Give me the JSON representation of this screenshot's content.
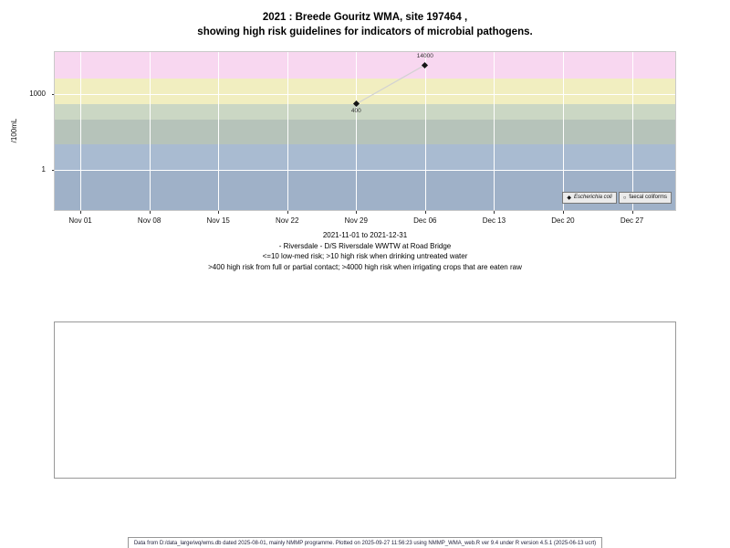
{
  "title": {
    "line1": "2021 : Breede Gouritz WMA, site 197464 ,",
    "line2": "showing high risk guidelines for indicators of microbial pathogens."
  },
  "chart_data": {
    "type": "scatter",
    "title": "2021 : Breede Gouritz WMA, site 197464 , showing high risk guidelines for indicators of microbial pathogens.",
    "ylabel": "/100mL",
    "yscale": "log",
    "ylim": [
      0.026,
      45000
    ],
    "x_domain_days": [
      -2.6,
      60.4
    ],
    "grid": true,
    "x_ticks": [
      {
        "label": "Nov 01",
        "day": 0
      },
      {
        "label": "Nov 08",
        "day": 7
      },
      {
        "label": "Nov 15",
        "day": 14
      },
      {
        "label": "Nov 22",
        "day": 21
      },
      {
        "label": "Nov 29",
        "day": 28
      },
      {
        "label": "Dec 06",
        "day": 35
      },
      {
        "label": "Dec 13",
        "day": 42
      },
      {
        "label": "Dec 20",
        "day": 49
      },
      {
        "label": "Dec 27",
        "day": 56
      }
    ],
    "y_ticks": [
      {
        "label": "1000",
        "value": 1000
      },
      {
        "label": "1",
        "value": 1
      }
    ],
    "risk_bands": [
      {
        "from": 4000,
        "to": 45000,
        "color": "#f8d7f0"
      },
      {
        "from": 400,
        "to": 4000,
        "color": "#f1eec0"
      },
      {
        "from": 100,
        "to": 400,
        "color": "#cbd7c4"
      },
      {
        "from": 10,
        "to": 100,
        "color": "#b6c3ba"
      },
      {
        "from": 1,
        "to": 10,
        "color": "#a9bbd1"
      },
      {
        "from": 0.026,
        "to": 1,
        "color": "#9fb1c8"
      }
    ],
    "series": [
      {
        "name": "Escherichia coli",
        "marker": "filled-diamond",
        "points": [
          {
            "x_label": "Nov 29",
            "day": 28,
            "value": 400,
            "label": "400",
            "label_pos": "below"
          },
          {
            "x_label": "Dec 06",
            "day": 35,
            "value": 14000,
            "label": "14000",
            "label_pos": "above"
          }
        ]
      },
      {
        "name": "faecal coliforms",
        "marker": "open-circle",
        "points": []
      }
    ],
    "legend": {
      "position": "bottom-right",
      "entries": [
        {
          "symbol": "filled-diamond",
          "label": "Escherichia coli",
          "italic": true
        },
        {
          "symbol": "open-circle",
          "label": "faecal coliforms",
          "italic": false
        }
      ]
    }
  },
  "caption": {
    "line1": "2021-11-01 to 2021-12-31",
    "line2": "- Riversdale - D/S Riversdale WWTW at Road Bridge",
    "line3": "<=10 low-med risk; >10 high risk when drinking untreated water",
    "line4": ">400 high risk from full or partial contact; >4000 high risk when irrigating crops that are eaten raw"
  },
  "footer": "Data from D:/data_large/wq/wms.db dated 2025-08-01, mainly NMMP programme. Plotted on 2025-09-27 11:56:23 using NMMP_WMA_web.R ver 9.4 under R version 4.5.1 (2025-06-13 ucrt)"
}
